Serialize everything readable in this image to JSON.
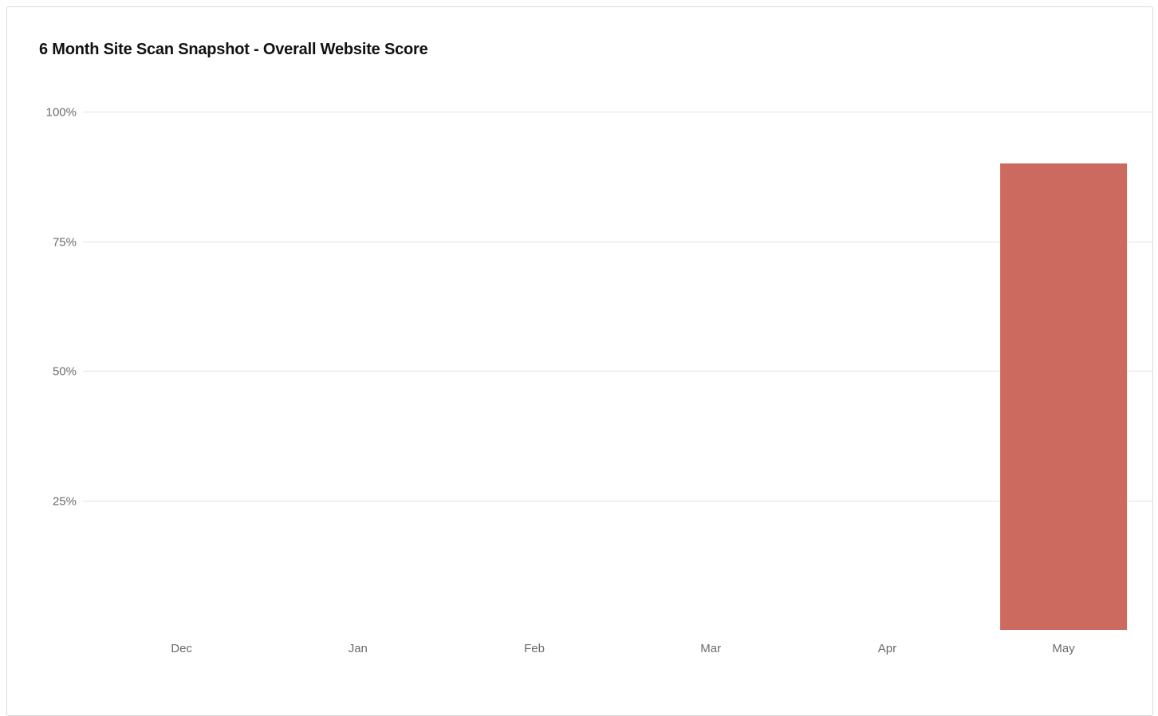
{
  "chart_data": {
    "type": "bar",
    "title": "6 Month Site Scan Snapshot - Overall Website Score",
    "xlabel": "",
    "ylabel": "",
    "categories": [
      "Dec",
      "Jan",
      "Feb",
      "Mar",
      "Apr",
      "May"
    ],
    "values": [
      0,
      0,
      0,
      0,
      0,
      90
    ],
    "ylim": [
      0,
      100
    ],
    "yticks": [
      25,
      50,
      75,
      100
    ],
    "ytick_labels": [
      "25%",
      "50%",
      "75%",
      "100%"
    ],
    "grid": true,
    "legend": "none",
    "bar_color": "#cc6a60",
    "grid_color": "#e4e4e4",
    "label_color": "#6b6b6b"
  }
}
